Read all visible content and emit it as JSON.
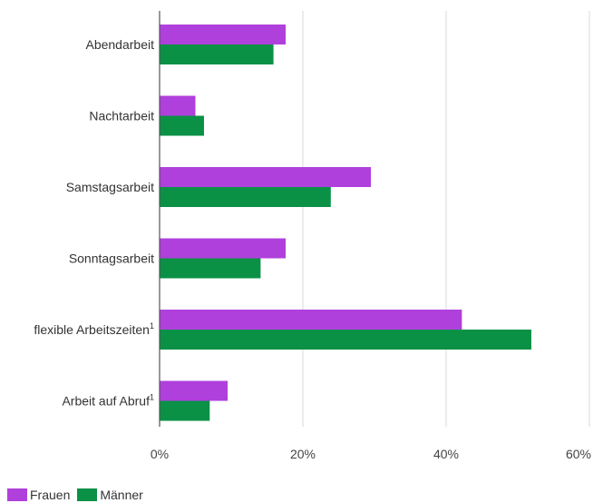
{
  "chart_data": {
    "type": "bar",
    "orientation": "horizontal",
    "categories": [
      {
        "label": "Abendarbeit",
        "sup": ""
      },
      {
        "label": "Nachtarbeit",
        "sup": ""
      },
      {
        "label": "Samstagsarbeit",
        "sup": ""
      },
      {
        "label": "Sonntagsarbeit",
        "sup": ""
      },
      {
        "label": "flexible Arbeitszeiten",
        "sup": "1"
      },
      {
        "label": "Arbeit auf Abruf",
        "sup": "1"
      }
    ],
    "series": [
      {
        "name": "Frauen",
        "color": "#b040dc",
        "values": [
          17.6,
          5.0,
          29.5,
          17.6,
          42.2,
          9.5
        ]
      },
      {
        "name": "Männer",
        "color": "#0a9146",
        "values": [
          15.9,
          6.2,
          23.9,
          14.1,
          51.9,
          7.0
        ]
      }
    ],
    "xlim": [
      0,
      60
    ],
    "xticks": [
      "0%",
      "20%",
      "40%",
      "60%"
    ],
    "xtick_values": [
      0,
      20,
      40,
      60
    ],
    "grid": "vertical",
    "legend": "bottom-left"
  }
}
